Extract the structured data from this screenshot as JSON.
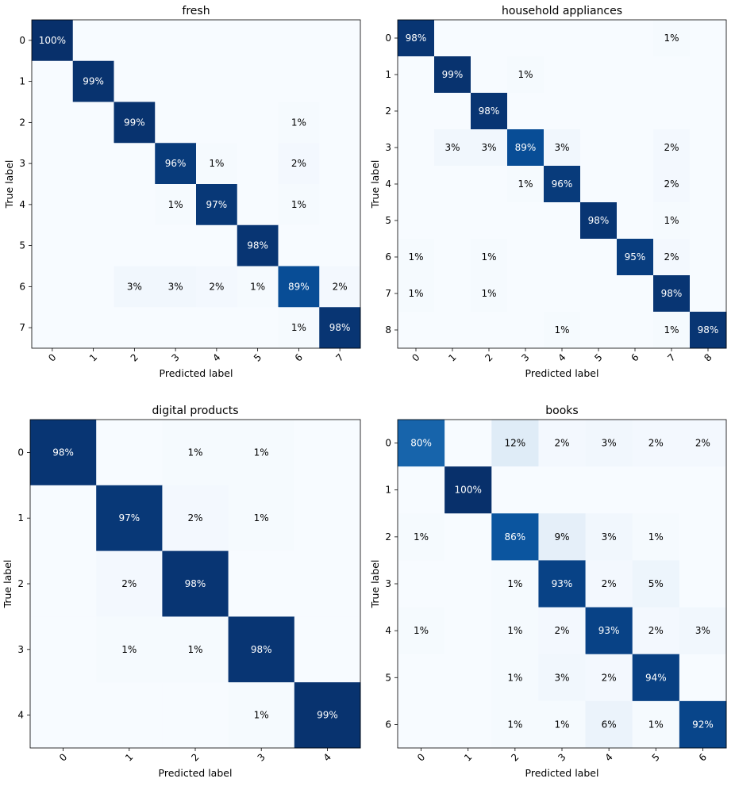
{
  "chart_data": [
    {
      "type": "heatmap",
      "title": "fresh",
      "xlabel": "Predicted label",
      "ylabel": "True label",
      "labels": [
        "0",
        "1",
        "2",
        "3",
        "4",
        "5",
        "6",
        "7"
      ],
      "colormap": "Blues",
      "vmin": 0,
      "vmax": 100,
      "matrix": [
        [
          100,
          0,
          0,
          0,
          0,
          0,
          0,
          0
        ],
        [
          0,
          99,
          0,
          0,
          0,
          0,
          0,
          0
        ],
        [
          0,
          0,
          99,
          0,
          0,
          0,
          1,
          0
        ],
        [
          0,
          0,
          0,
          96,
          1,
          0,
          2,
          0
        ],
        [
          0,
          0,
          0,
          1,
          97,
          0,
          1,
          0
        ],
        [
          0,
          0,
          0,
          0,
          0,
          98,
          0,
          0
        ],
        [
          0,
          0,
          3,
          3,
          2,
          1,
          89,
          2
        ],
        [
          0,
          0,
          0,
          0,
          0,
          0,
          1,
          98
        ]
      ]
    },
    {
      "type": "heatmap",
      "title": "household appliances",
      "xlabel": "Predicted label",
      "ylabel": "True label",
      "labels": [
        "0",
        "1",
        "2",
        "3",
        "4",
        "5",
        "6",
        "7",
        "8"
      ],
      "colormap": "Blues",
      "vmin": 0,
      "vmax": 100,
      "matrix": [
        [
          98,
          0,
          0,
          0,
          0,
          0,
          0,
          1,
          0
        ],
        [
          0,
          99,
          0,
          1,
          0,
          0,
          0,
          0,
          0
        ],
        [
          0,
          0,
          98,
          0,
          0,
          0,
          0,
          0,
          0
        ],
        [
          0,
          3,
          3,
          89,
          3,
          0,
          0,
          2,
          0
        ],
        [
          0,
          0,
          0,
          1,
          96,
          0,
          0,
          2,
          0
        ],
        [
          0,
          0,
          0,
          0,
          0,
          98,
          0,
          1,
          0
        ],
        [
          1,
          0,
          1,
          0,
          0,
          0,
          95,
          2,
          0
        ],
        [
          1,
          0,
          1,
          0,
          0,
          0,
          0,
          98,
          0
        ],
        [
          0,
          0,
          0,
          0,
          1,
          0,
          0,
          1,
          98
        ]
      ]
    },
    {
      "type": "heatmap",
      "title": "digital products",
      "xlabel": "Predicted label",
      "ylabel": "True label",
      "labels": [
        "0",
        "1",
        "2",
        "3",
        "4"
      ],
      "colormap": "Blues",
      "vmin": 0,
      "vmax": 100,
      "matrix": [
        [
          98,
          0,
          1,
          1,
          0
        ],
        [
          0,
          97,
          2,
          1,
          0
        ],
        [
          0,
          2,
          98,
          0,
          0
        ],
        [
          0,
          1,
          1,
          98,
          0
        ],
        [
          0,
          0,
          0,
          1,
          99
        ]
      ]
    },
    {
      "type": "heatmap",
      "title": "books",
      "xlabel": "Predicted label",
      "ylabel": "True label",
      "labels": [
        "0",
        "1",
        "2",
        "3",
        "4",
        "5",
        "6"
      ],
      "colormap": "Blues",
      "vmin": 0,
      "vmax": 100,
      "matrix": [
        [
          80,
          0,
          12,
          2,
          3,
          2,
          2
        ],
        [
          0,
          100,
          0,
          0,
          0,
          0,
          0
        ],
        [
          1,
          0,
          86,
          9,
          3,
          1,
          0
        ],
        [
          0,
          0,
          1,
          93,
          2,
          5,
          0
        ],
        [
          1,
          0,
          1,
          2,
          93,
          2,
          3
        ],
        [
          0,
          0,
          1,
          3,
          2,
          94,
          0
        ],
        [
          0,
          0,
          1,
          1,
          6,
          1,
          92
        ]
      ]
    }
  ]
}
